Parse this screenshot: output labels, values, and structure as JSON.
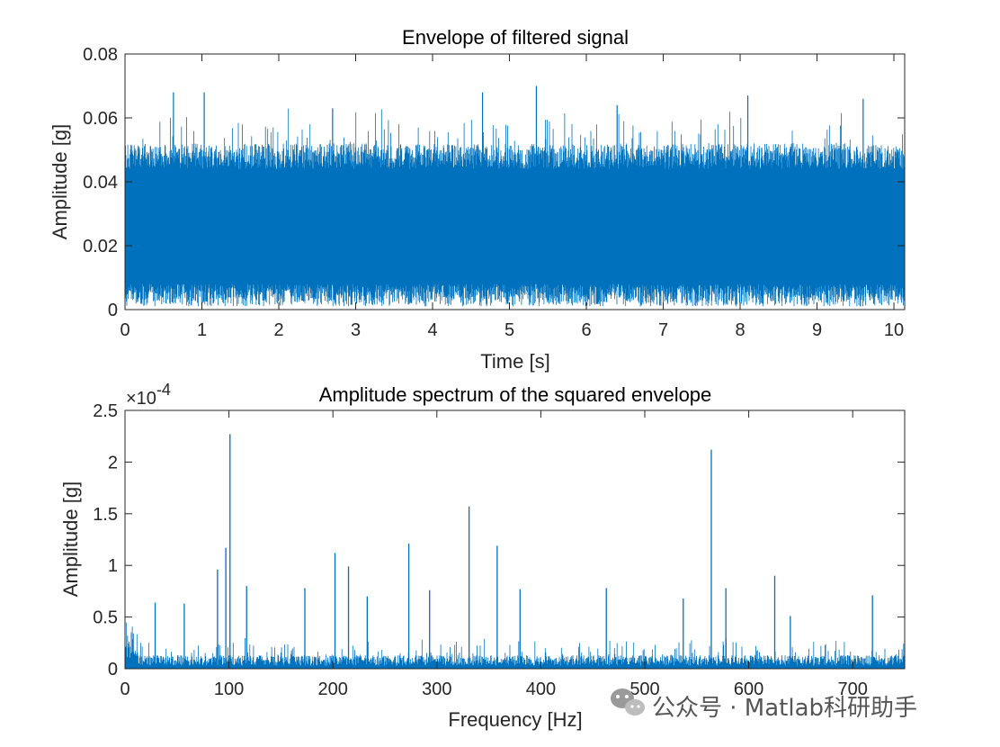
{
  "chart_data": [
    {
      "type": "line",
      "title": "Envelope of filtered signal",
      "xlabel": "Time [s]",
      "ylabel": "Amplitude [g]",
      "xlim": [
        0,
        10.14
      ],
      "ylim": [
        0,
        0.08
      ],
      "x_ticks": [
        "0",
        "1",
        "2",
        "3",
        "4",
        "5",
        "6",
        "7",
        "8",
        "9",
        "10"
      ],
      "x_tick_values": [
        0,
        1,
        2,
        3,
        4,
        5,
        6,
        7,
        8,
        9,
        10
      ],
      "y_ticks": [
        "0",
        "0.02",
        "0.04",
        "0.06",
        "0.08"
      ],
      "y_tick_values": [
        0,
        0.02,
        0.04,
        0.06,
        0.08
      ],
      "color": "#0072BD",
      "grid": false,
      "series_summary": {
        "mean": 0.024,
        "band_low": 0.008,
        "band_high": 0.044,
        "peaks": [
          {
            "x": 0.63,
            "y": 0.068
          },
          {
            "x": 1.03,
            "y": 0.068
          },
          {
            "x": 4.65,
            "y": 0.068
          },
          {
            "x": 5.35,
            "y": 0.07
          },
          {
            "x": 9.6,
            "y": 0.066
          },
          {
            "x": 8.1,
            "y": 0.067
          },
          {
            "x": 2.7,
            "y": 0.063
          },
          {
            "x": 6.4,
            "y": 0.064
          }
        ]
      }
    },
    {
      "type": "line",
      "title": "Amplitude spectrum of the squared envelope",
      "xlabel": "Frequency [Hz]",
      "ylabel": "Amplitude [g]",
      "y_exponent_base": "×10",
      "y_exponent_power": "-4",
      "xlim": [
        0,
        750
      ],
      "ylim": [
        0,
        2.5
      ],
      "x_ticks": [
        "0",
        "100",
        "200",
        "300",
        "400",
        "500",
        "600",
        "700"
      ],
      "x_tick_values": [
        0,
        100,
        200,
        300,
        400,
        500,
        600,
        700
      ],
      "y_ticks": [
        "0",
        "0.5",
        "1",
        "1.5",
        "2",
        "2.5"
      ],
      "y_tick_values": [
        0,
        0.5,
        1,
        1.5,
        2,
        2.5
      ],
      "color": "#0072BD",
      "grid": false,
      "peaks": [
        {
          "x": 101,
          "y": 2.27
        },
        {
          "x": 564,
          "y": 2.12
        },
        {
          "x": 331,
          "y": 1.57
        },
        {
          "x": 273,
          "y": 1.21
        },
        {
          "x": 358,
          "y": 1.19
        },
        {
          "x": 97,
          "y": 1.17
        },
        {
          "x": 202,
          "y": 1.12
        },
        {
          "x": 215,
          "y": 0.99
        },
        {
          "x": 89,
          "y": 0.96
        },
        {
          "x": 625,
          "y": 0.9
        },
        {
          "x": 117,
          "y": 0.8
        },
        {
          "x": 173,
          "y": 0.78
        },
        {
          "x": 463,
          "y": 0.78
        },
        {
          "x": 578,
          "y": 0.78
        },
        {
          "x": 380,
          "y": 0.77
        },
        {
          "x": 719,
          "y": 0.71
        },
        {
          "x": 29,
          "y": 0.64
        },
        {
          "x": 57,
          "y": 0.63
        },
        {
          "x": 233,
          "y": 0.7
        },
        {
          "x": 293,
          "y": 0.76
        },
        {
          "x": 537,
          "y": 0.68
        },
        {
          "x": 640,
          "y": 0.51
        }
      ]
    }
  ],
  "watermark": {
    "text": "公众号 · Matlab科研助手",
    "icon": "wechat-icon"
  }
}
